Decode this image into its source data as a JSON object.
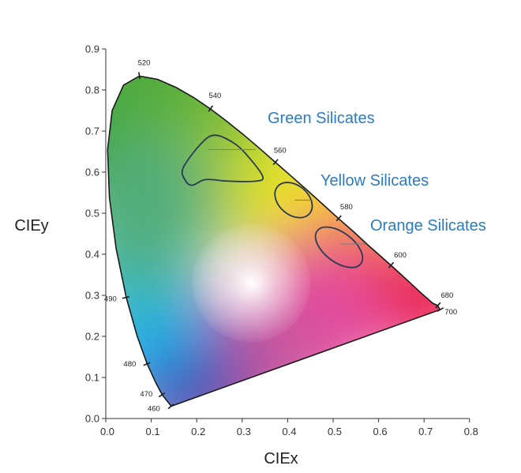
{
  "chart_data": {
    "type": "chromaticity-diagram",
    "xlabel": "CIEx",
    "ylabel": "CIEy",
    "xlim": [
      0.0,
      0.8
    ],
    "ylim": [
      0.0,
      0.9
    ],
    "x_ticks": [
      "0.0",
      "0.1",
      "0.2",
      "0.3",
      "0.4",
      "0.5",
      "0.6",
      "0.7",
      "0.8"
    ],
    "y_ticks": [
      "0.0",
      "0.1",
      "0.2",
      "0.3",
      "0.4",
      "0.5",
      "0.6",
      "0.7",
      "0.8",
      "0.9"
    ],
    "grid": false,
    "locus": [
      {
        "nm": "460",
        "x": 0.144,
        "y": 0.03,
        "labeled": true
      },
      {
        "nm": "470",
        "x": 0.124,
        "y": 0.058,
        "labeled": true
      },
      {
        "nm": "475",
        "x": 0.11,
        "y": 0.087,
        "labeled": false
      },
      {
        "nm": "480",
        "x": 0.091,
        "y": 0.133,
        "labeled": true
      },
      {
        "nm": "485",
        "x": 0.069,
        "y": 0.201,
        "labeled": false
      },
      {
        "nm": "490",
        "x": 0.045,
        "y": 0.295,
        "labeled": true
      },
      {
        "nm": "495",
        "x": 0.023,
        "y": 0.413,
        "labeled": false
      },
      {
        "nm": "500",
        "x": 0.008,
        "y": 0.538,
        "labeled": false
      },
      {
        "nm": "505",
        "x": 0.004,
        "y": 0.655,
        "labeled": false
      },
      {
        "nm": "510",
        "x": 0.014,
        "y": 0.75,
        "labeled": false
      },
      {
        "nm": "515",
        "x": 0.039,
        "y": 0.812,
        "labeled": false
      },
      {
        "nm": "520",
        "x": 0.074,
        "y": 0.834,
        "labeled": true
      },
      {
        "nm": "525",
        "x": 0.114,
        "y": 0.826,
        "labeled": false
      },
      {
        "nm": "530",
        "x": 0.155,
        "y": 0.806,
        "labeled": false
      },
      {
        "nm": "535",
        "x": 0.193,
        "y": 0.782,
        "labeled": false
      },
      {
        "nm": "540",
        "x": 0.23,
        "y": 0.754,
        "labeled": true
      },
      {
        "nm": "545",
        "x": 0.266,
        "y": 0.724,
        "labeled": false
      },
      {
        "nm": "550",
        "x": 0.302,
        "y": 0.692,
        "labeled": false
      },
      {
        "nm": "555",
        "x": 0.337,
        "y": 0.659,
        "labeled": false
      },
      {
        "nm": "560",
        "x": 0.373,
        "y": 0.624,
        "labeled": true
      },
      {
        "nm": "565",
        "x": 0.409,
        "y": 0.589,
        "labeled": false
      },
      {
        "nm": "570",
        "x": 0.444,
        "y": 0.555,
        "labeled": false
      },
      {
        "nm": "575",
        "x": 0.479,
        "y": 0.52,
        "labeled": false
      },
      {
        "nm": "580",
        "x": 0.512,
        "y": 0.487,
        "labeled": true
      },
      {
        "nm": "585",
        "x": 0.545,
        "y": 0.455,
        "labeled": false
      },
      {
        "nm": "590",
        "x": 0.575,
        "y": 0.424,
        "labeled": false
      },
      {
        "nm": "595",
        "x": 0.603,
        "y": 0.397,
        "labeled": false
      },
      {
        "nm": "600",
        "x": 0.627,
        "y": 0.373,
        "labeled": true
      },
      {
        "nm": "610",
        "x": 0.666,
        "y": 0.334,
        "labeled": false
      },
      {
        "nm": "620",
        "x": 0.691,
        "y": 0.308,
        "labeled": false
      },
      {
        "nm": "640",
        "x": 0.719,
        "y": 0.281,
        "labeled": false
      },
      {
        "nm": "680",
        "x": 0.73,
        "y": 0.275,
        "labeled": true
      },
      {
        "nm": "700",
        "x": 0.735,
        "y": 0.265,
        "labeled": true
      }
    ],
    "regions": [
      {
        "name": "Green Silicates",
        "points": [
          [
            0.17,
            0.61
          ],
          [
            0.21,
            0.67
          ],
          [
            0.24,
            0.69
          ],
          [
            0.28,
            0.672
          ],
          [
            0.31,
            0.642
          ],
          [
            0.345,
            0.59
          ],
          [
            0.33,
            0.578
          ],
          [
            0.27,
            0.578
          ],
          [
            0.22,
            0.582
          ],
          [
            0.19,
            0.568
          ],
          [
            0.175,
            0.58
          ]
        ],
        "label_anchor": [
          0.225,
          0.655
        ]
      },
      {
        "name": "Yellow Silicates",
        "ellipse": {
          "cx": 0.413,
          "cy": 0.532,
          "rx": 0.046,
          "ry": 0.036,
          "rotate_deg": 40
        },
        "label_anchor": [
          0.415,
          0.532
        ]
      },
      {
        "name": "Orange Silicates",
        "ellipse": {
          "cx": 0.513,
          "cy": 0.417,
          "rx": 0.06,
          "ry": 0.036,
          "rotate_deg": 37
        },
        "label_anchor": [
          0.515,
          0.425
        ]
      }
    ],
    "colors": {
      "region_label": "#2b7bbf",
      "region_outline": "#2a3a55",
      "axis": "#333333"
    }
  }
}
